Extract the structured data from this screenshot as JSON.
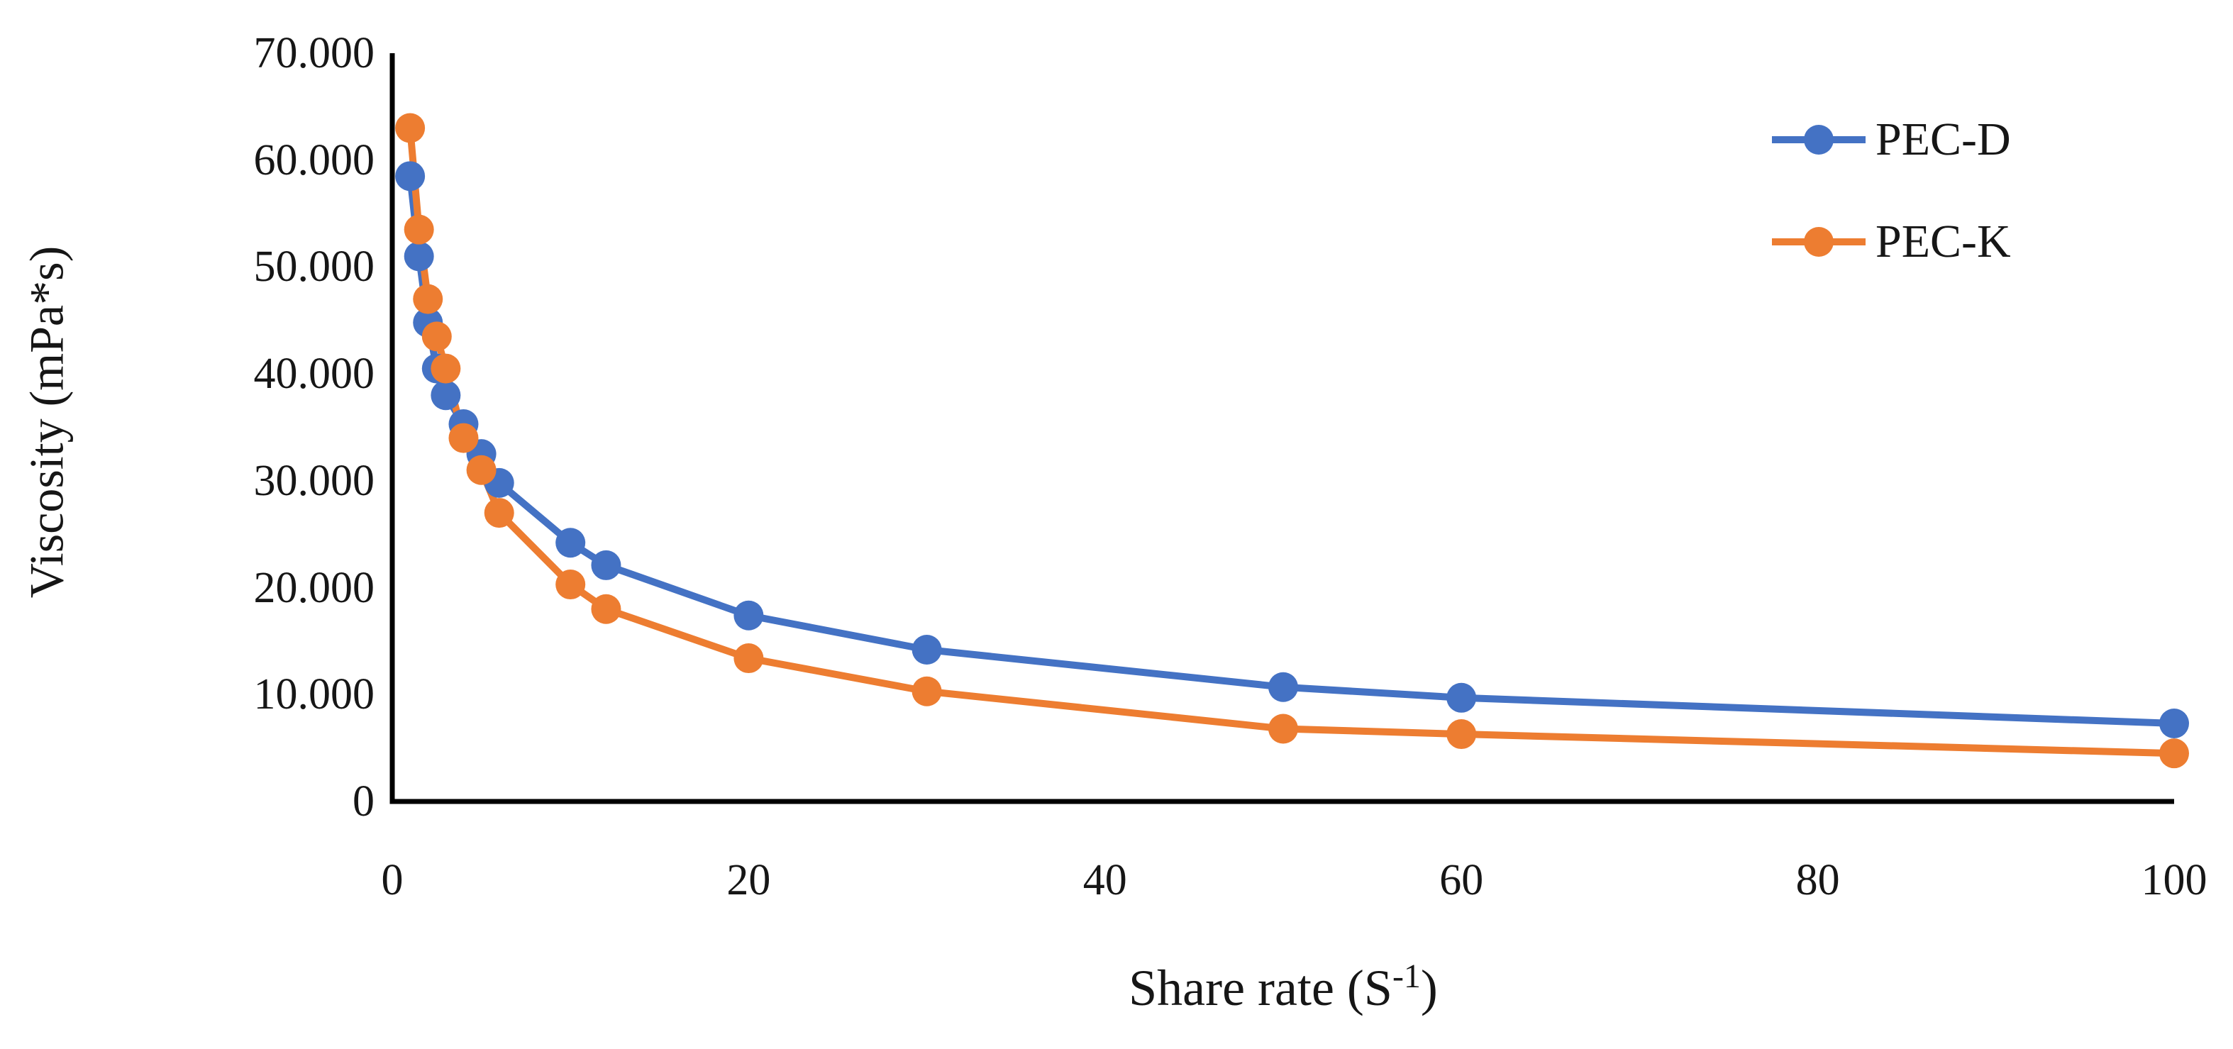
{
  "figure": {
    "y_axis_title": "Viscosity (mPa*s)",
    "x_axis_title_prefix": "Share rate (S",
    "x_axis_title_sup": "-1",
    "x_axis_title_suffix": ")"
  },
  "chart_data": {
    "type": "line",
    "title": "",
    "xlabel": "Share rate (S-1)",
    "ylabel": "Viscosity (mPa*s)",
    "xlim": [
      0,
      100
    ],
    "ylim": [
      0,
      70000
    ],
    "grid": false,
    "legend_position": "top-right",
    "axis_color": "#000000",
    "x": [
      1,
      1.5,
      2,
      2.5,
      3,
      4,
      5,
      6,
      10,
      12,
      20,
      30,
      50,
      60,
      100
    ],
    "x_ticks": [
      {
        "label": "0",
        "value": 0
      },
      {
        "label": "20",
        "value": 20
      },
      {
        "label": "40",
        "value": 40
      },
      {
        "label": "60",
        "value": 60
      },
      {
        "label": "80",
        "value": 80
      },
      {
        "label": "100",
        "value": 100
      }
    ],
    "y_ticks": [
      {
        "label": "0",
        "value": 0
      },
      {
        "label": "10.000",
        "value": 10000
      },
      {
        "label": "20.000",
        "value": 20000
      },
      {
        "label": "30.000",
        "value": 30000
      },
      {
        "label": "40.000",
        "value": 40000
      },
      {
        "label": "50.000",
        "value": 50000
      },
      {
        "label": "60.000",
        "value": 60000
      },
      {
        "label": "70.000",
        "value": 70000
      }
    ],
    "series": [
      {
        "name": "PEC-D",
        "color": "#4472C4",
        "values": [
          58500,
          51000,
          44800,
          40500,
          38000,
          35300,
          32500,
          29800,
          24200,
          22100,
          17400,
          14200,
          10700,
          9700,
          7300
        ]
      },
      {
        "name": "PEC-K",
        "color": "#ED7D31",
        "values": [
          63000,
          53500,
          47000,
          43500,
          40500,
          34000,
          31000,
          27000,
          20300,
          18000,
          13400,
          10300,
          6800,
          6300,
          4500
        ]
      }
    ]
  }
}
